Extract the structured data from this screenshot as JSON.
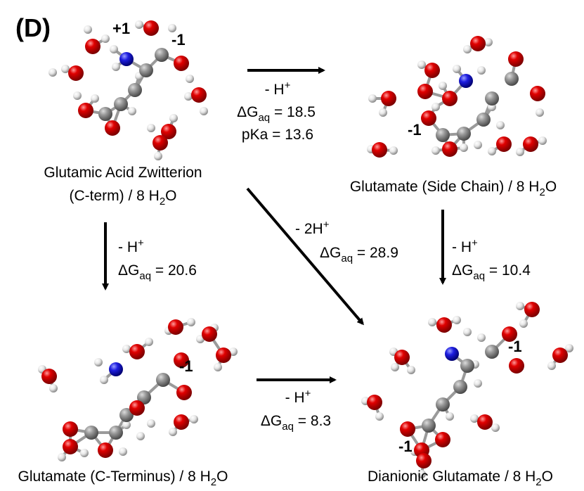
{
  "panel_label": "(D)",
  "nodes": [
    {
      "label": [
        {
          "text": "Glutamic Acid Zwitterion"
        },
        {
          "text": "(C-term) / 8 H",
          "sub": "2",
          "tail": "O"
        }
      ],
      "charges": [
        "+1",
        "-1"
      ]
    },
    {
      "label": [
        {
          "text": "Glutamate (Side Chain) / 8 H",
          "sub": "2",
          "tail": "O"
        }
      ],
      "charges": [
        "-1"
      ]
    },
    {
      "label": [
        {
          "text": "Glutamate (C-Terminus) / 8 H",
          "sub": "2",
          "tail": "O"
        }
      ],
      "charges": [
        "-1"
      ]
    },
    {
      "label": [
        {
          "text": "Dianionic Glutamate / 8 H",
          "sub": "2",
          "tail": "O"
        }
      ],
      "charges": [
        "-1",
        "-1"
      ]
    }
  ],
  "edges": [
    {
      "lines": [
        {
          "text": "- H",
          "sup": "+"
        },
        {
          "text": "ΔG",
          "sub": "aq",
          "tail": " = 18.5"
        },
        {
          "text": "pKa = 13.6"
        }
      ]
    },
    {
      "lines": [
        {
          "text": "- H",
          "sup": "+"
        },
        {
          "text": "ΔG",
          "sub": "aq",
          "tail": " = 20.6"
        }
      ]
    },
    {
      "lines": [
        {
          "text": "- 2H",
          "sup": "+"
        },
        {
          "text": "ΔG",
          "sub": "aq",
          "tail": " = 28.9"
        }
      ]
    },
    {
      "lines": [
        {
          "text": "- H",
          "sup": "+"
        },
        {
          "text": "ΔG",
          "sub": "aq",
          "tail": " = 10.4"
        }
      ]
    },
    {
      "lines": [
        {
          "text": "- H",
          "sup": "+"
        },
        {
          "text": "ΔG",
          "sub": "aq",
          "tail": " = 8.3"
        }
      ]
    }
  ]
}
